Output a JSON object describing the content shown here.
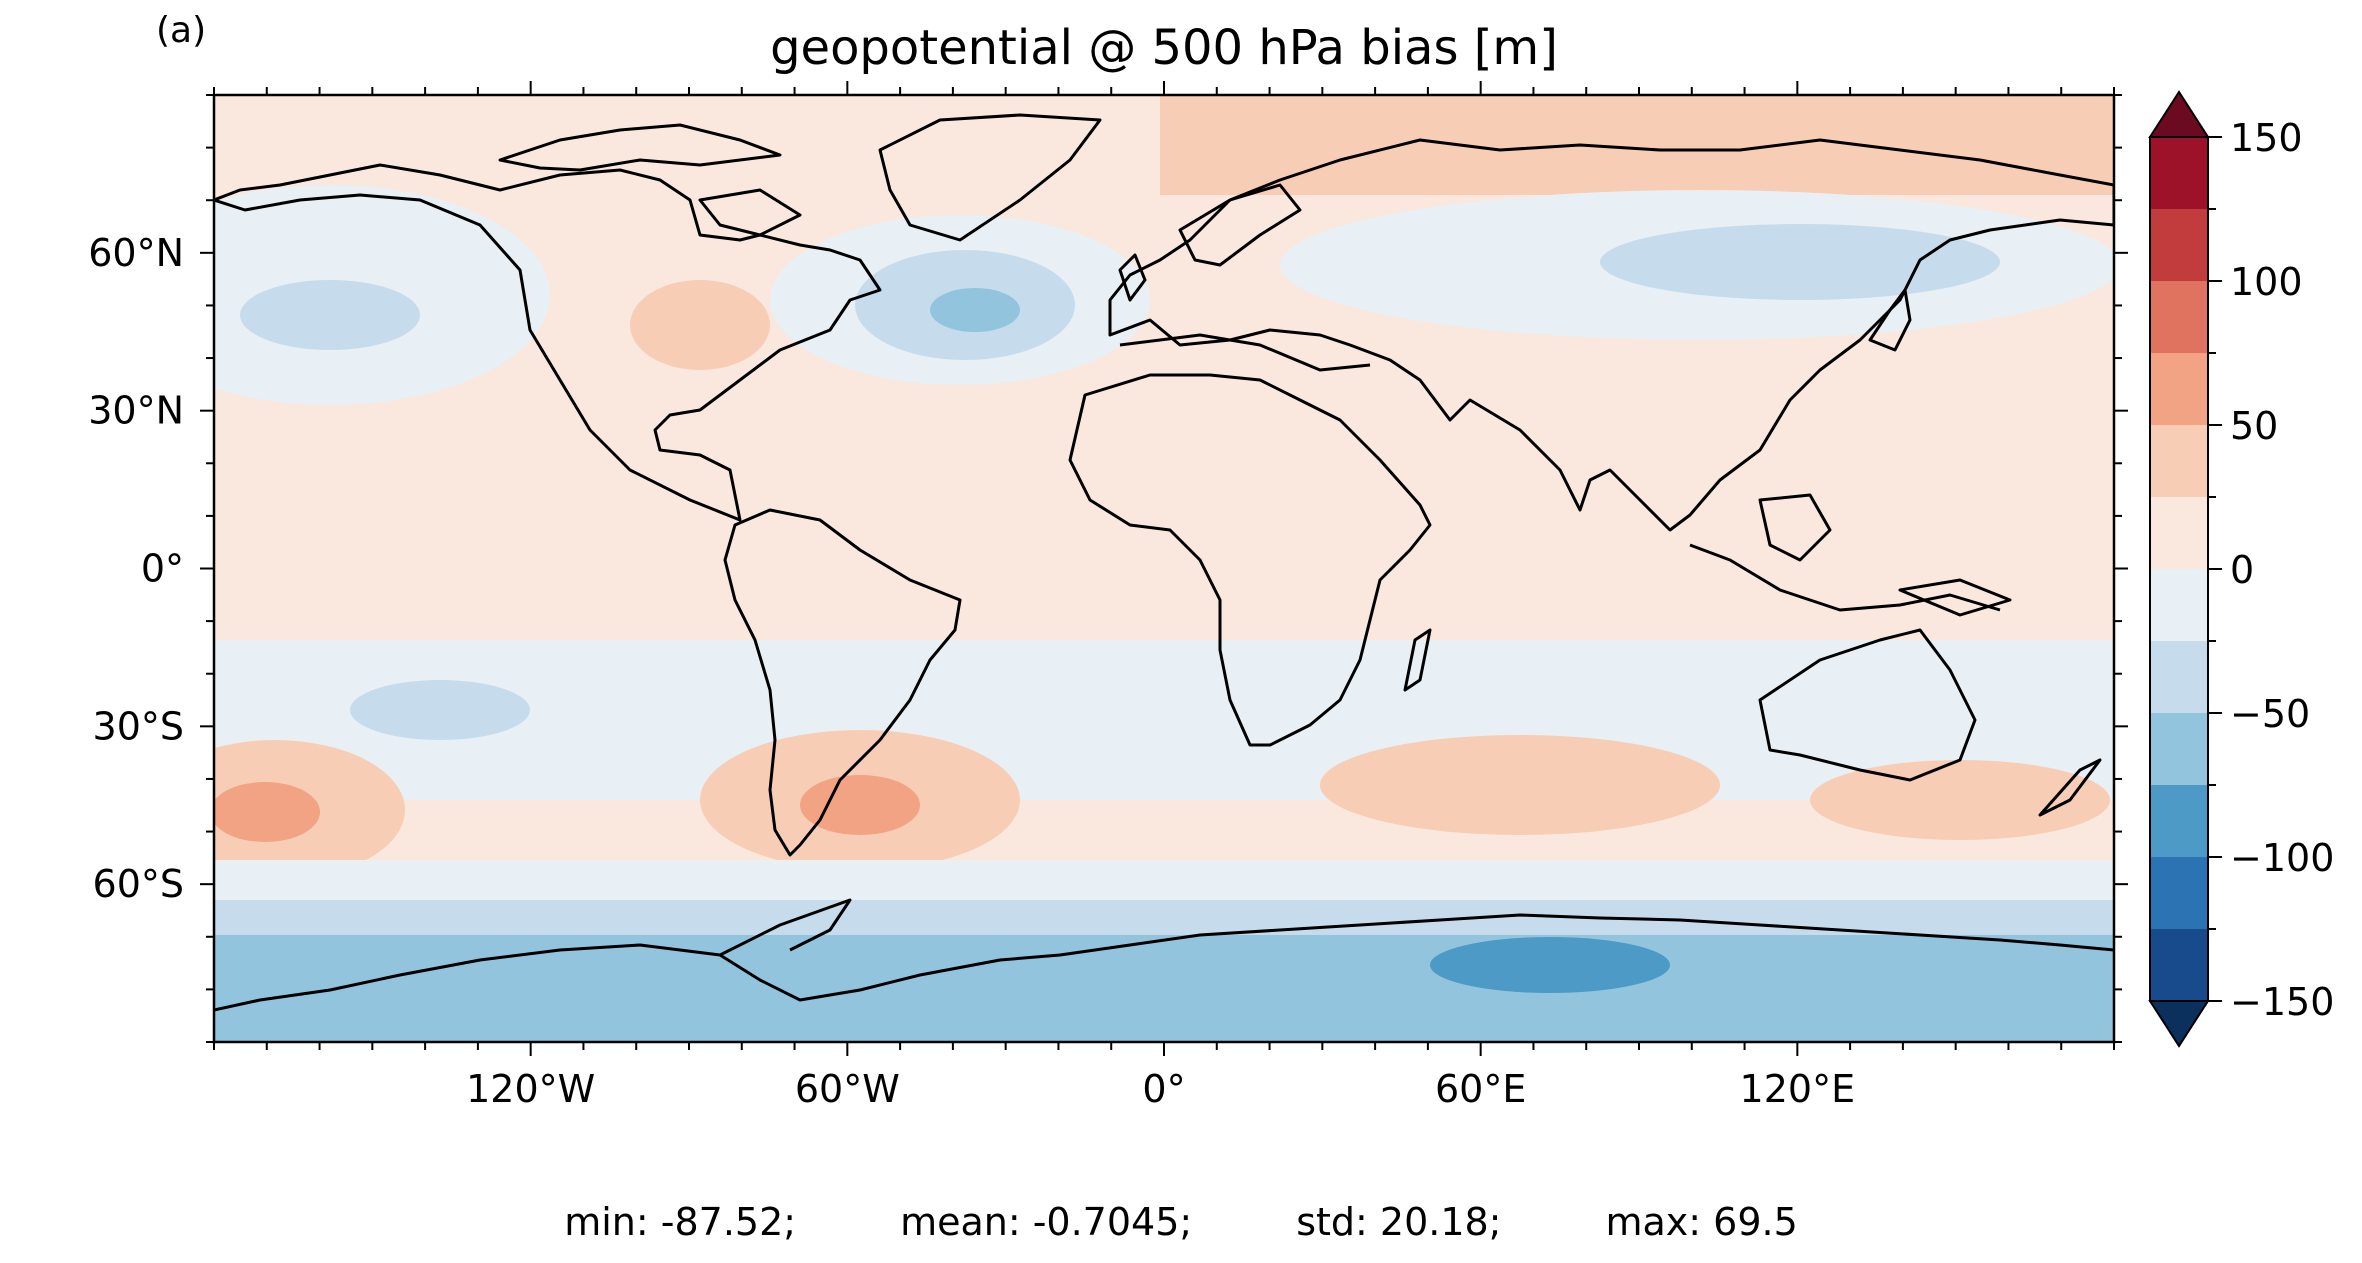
{
  "panel_label": "(a)",
  "title": "geopotential @ 500 hPa bias [m]",
  "lon_ticks": [
    {
      "value": -120,
      "label": "120°W"
    },
    {
      "value": -60,
      "label": "60°W"
    },
    {
      "value": 0,
      "label": "0°"
    },
    {
      "value": 60,
      "label": "60°E"
    },
    {
      "value": 120,
      "label": "120°E"
    }
  ],
  "lat_ticks": [
    {
      "value": 60,
      "label": "60°N"
    },
    {
      "value": 30,
      "label": "30°N"
    },
    {
      "value": 0,
      "label": "0°"
    },
    {
      "value": -30,
      "label": "30°S"
    },
    {
      "value": -60,
      "label": "60°S"
    }
  ],
  "lon_range": [
    -180,
    180
  ],
  "lat_range": [
    -90,
    90
  ],
  "colorbar": {
    "levels": [
      -150,
      -125,
      -100,
      -75,
      -50,
      -25,
      0,
      25,
      50,
      75,
      100,
      125,
      150
    ],
    "colors": [
      "#174b8b",
      "#2c73b3",
      "#4e9ac6",
      "#93c4de",
      "#c6dcec",
      "#e8eff5",
      "#fae8df",
      "#f8cdb5",
      "#f2a383",
      "#df7360",
      "#c23c3e",
      "#9d1229"
    ],
    "extend_low_color": "#0b305e",
    "extend_high_color": "#6b0a20",
    "tick_labels": [
      {
        "value": 150,
        "label": "150"
      },
      {
        "value": 100,
        "label": "100"
      },
      {
        "value": 50,
        "label": "50"
      },
      {
        "value": 0,
        "label": "0"
      },
      {
        "value": -50,
        "label": "−50"
      },
      {
        "value": -100,
        "label": "−100"
      },
      {
        "value": -150,
        "label": "−150"
      }
    ]
  },
  "stats": {
    "min": "min: -87.52;",
    "mean": "mean: -0.7045;",
    "std": "std: 20.18;",
    "max": "max: 69.5"
  }
}
